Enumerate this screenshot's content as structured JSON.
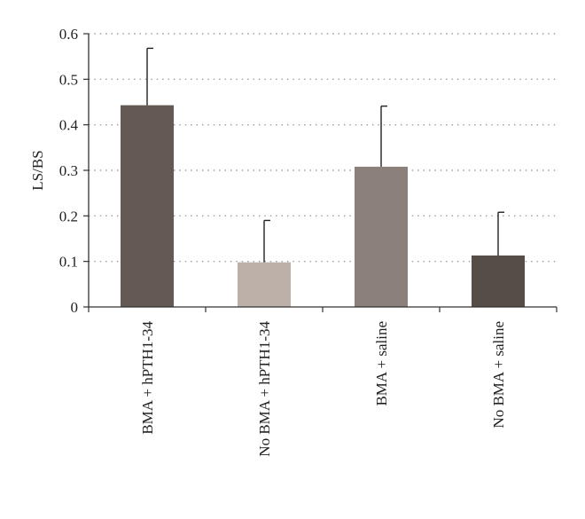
{
  "chart_data": {
    "type": "bar",
    "title": "",
    "xlabel": "",
    "ylabel": "LS/BS",
    "ylim": [
      0,
      0.6
    ],
    "yticks": [
      0,
      0.1,
      0.2,
      0.3,
      0.4,
      0.5,
      0.6
    ],
    "ytick_labels": [
      "0",
      "0.1",
      "0.2",
      "0.3",
      "0.4",
      "0.5",
      "0.6"
    ],
    "grid": "horizontal-dotted",
    "legend": "none",
    "categories": [
      "BMA + hPTH1-34",
      "No BMA + hPTH1-34",
      "BMA + saline",
      "No BMA + saline"
    ],
    "values": [
      0.443,
      0.098,
      0.308,
      0.113
    ],
    "error_upper": [
      0.568,
      0.19,
      0.441,
      0.208
    ],
    "colors": [
      "#655a53",
      "#bdb0a9",
      "#8b817a",
      "#564d48"
    ]
  }
}
